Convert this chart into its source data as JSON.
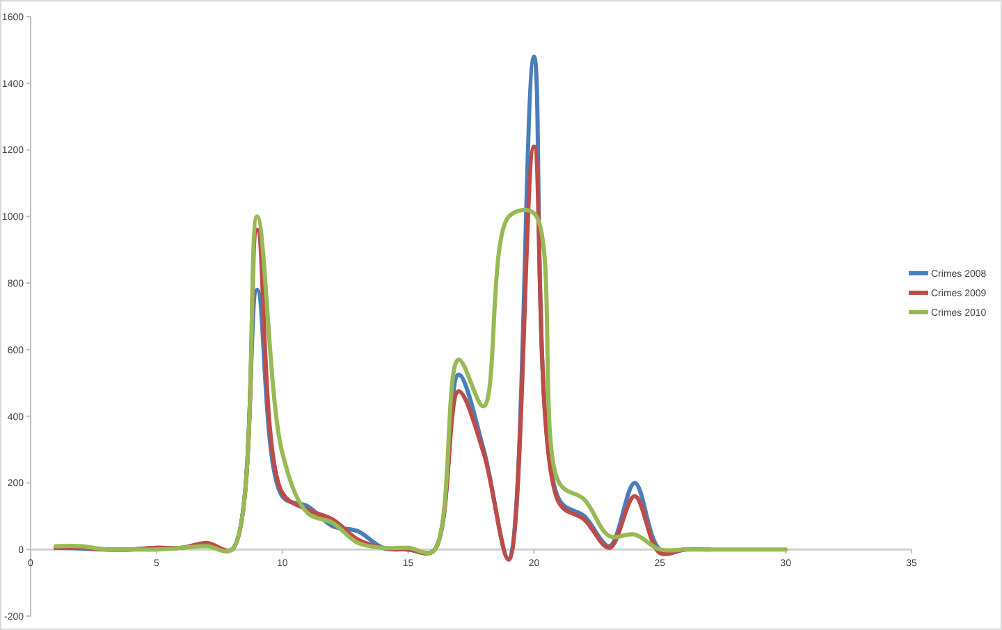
{
  "chart_data": {
    "type": "line",
    "x": [
      1,
      2,
      3,
      4,
      5,
      6,
      7,
      8,
      9,
      10,
      11,
      12,
      13,
      14,
      15,
      16,
      17,
      18,
      19,
      20,
      21,
      22,
      23,
      24,
      25,
      26,
      27,
      28,
      29,
      30
    ],
    "series": [
      {
        "name": "Crimes 2008",
        "color": "#4a7ebb",
        "values": [
          5,
          3,
          0,
          0,
          5,
          5,
          15,
          0,
          780,
          160,
          130,
          70,
          55,
          5,
          0,
          -5,
          525,
          300,
          -30,
          1480,
          150,
          100,
          10,
          200,
          0,
          0,
          null,
          null,
          null,
          null
        ]
      },
      {
        "name": "Crimes 2009",
        "color": "#be4b48",
        "values": [
          5,
          5,
          0,
          0,
          5,
          5,
          20,
          0,
          960,
          170,
          120,
          90,
          30,
          5,
          0,
          -5,
          475,
          290,
          -30,
          1210,
          140,
          90,
          5,
          160,
          -10,
          0,
          0,
          null,
          null,
          null
        ]
      },
      {
        "name": "Crimes 2010",
        "color": "#98b954",
        "values": [
          10,
          10,
          0,
          0,
          0,
          5,
          10,
          0,
          1000,
          290,
          110,
          80,
          20,
          5,
          5,
          -5,
          570,
          430,
          1000,
          1010,
          200,
          150,
          40,
          45,
          0,
          0,
          0,
          0,
          0,
          0
        ]
      }
    ],
    "xlim": [
      0,
      35
    ],
    "xticks": [
      0,
      5,
      10,
      15,
      20,
      25,
      30,
      35
    ],
    "ylim": [
      -200,
      1600
    ],
    "yticks": [
      -200,
      0,
      200,
      400,
      600,
      800,
      1000,
      1200,
      1400,
      1600
    ],
    "grid": false,
    "legend": "right",
    "marker": "none",
    "line_style": "solid"
  }
}
